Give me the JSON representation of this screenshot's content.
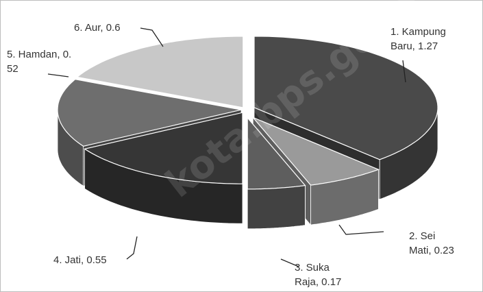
{
  "chart_data": {
    "type": "pie",
    "style": "3d-exploded",
    "slices": [
      {
        "label": "1.    Kampung\nBaru, 1.27",
        "name": "Kampung Baru",
        "value": 1.27,
        "color": "#4a4a4a"
      },
      {
        "label": "2.    Sei\nMati, 0.23",
        "name": "Sei Mati",
        "value": 0.23,
        "color": "#9a9a9a"
      },
      {
        "label": "3.    Suka\nRaja, 0.17",
        "name": "Suka Raja",
        "value": 0.17,
        "color": "#5e5e5e"
      },
      {
        "label": "4.    Jati, 0.55",
        "name": "Jati",
        "value": 0.55,
        "color": "#363636"
      },
      {
        "label": "5.    Hamdan, 0.\n52",
        "name": "Hamdan",
        "value": 0.52,
        "color": "#6e6e6e"
      },
      {
        "label": "6.    Aur, 0.6",
        "name": "Aur",
        "value": 0.6,
        "color": "#c8c8c8"
      }
    ]
  },
  "watermark": "kota.bps.go.id"
}
